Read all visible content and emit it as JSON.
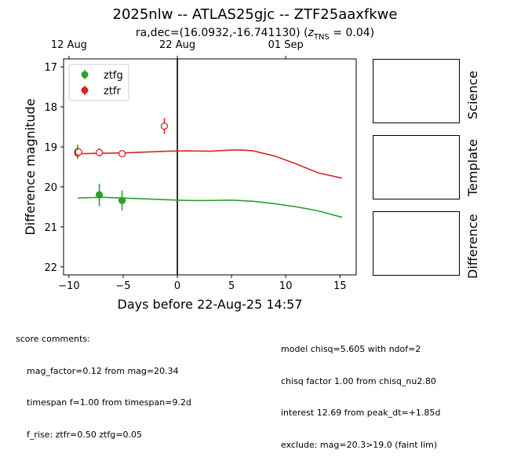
{
  "title": "2025nlw -- ATLAS25gjc -- ZTF25aaxfkwe",
  "subtitle_main": "ra,dec=(16.0932,-16.741130) (",
  "subtitle_z": "z",
  "subtitle_tns": "TNS",
  "subtitle_tail": " = 0.04)",
  "panels": {
    "science": "Science",
    "template": "Template",
    "difference": "Difference"
  },
  "comments_left": {
    "heading": "score comments:",
    "lines": [
      "mag_factor=0.12 from mag=20.34",
      "timespan f=1.00 from timespan=9.2d",
      "f_rise: ztfr=0.50 ztfg=0.05"
    ]
  },
  "comments_right": {
    "lines": [
      "model chisq=5.605 with ndof=2",
      "chisq factor 1.00 from chisq_nu2.80",
      "interest 12.69 from peak_dt=+1.85d",
      "exclude: mag=20.3>19.0 (faint lim)"
    ]
  },
  "chart_data": {
    "type": "scatter",
    "xlabel": "Days before 22-Aug-25 14:57",
    "ylabel": "Difference magnitude",
    "xlim": [
      -10.5,
      16.5
    ],
    "ylim": [
      22.2,
      16.8
    ],
    "y_inverted": true,
    "x_ticks": [
      -10,
      -5,
      0,
      5,
      10,
      15
    ],
    "y_ticks": [
      17,
      18,
      19,
      20,
      21,
      22
    ],
    "top_axis_ticks": [
      {
        "label": "12 Aug",
        "x": -10
      },
      {
        "label": "22 Aug",
        "x": 0
      },
      {
        "label": "01 Sep",
        "x": 10
      }
    ],
    "vline_x": 0,
    "legend": {
      "placement": "top-left"
    },
    "series": [
      {
        "name": "ztfg",
        "color": "#2ca02c",
        "points": [
          {
            "x": -9.2,
            "y": 19.12,
            "err": 0.18,
            "filled": true
          },
          {
            "x": -7.2,
            "y": 20.2,
            "err": 0.28,
            "filled": true
          },
          {
            "x": -5.1,
            "y": 20.34,
            "err": 0.25,
            "filled": true
          }
        ],
        "model": {
          "x": [
            -9.2,
            -7,
            -5,
            -3,
            -1,
            1,
            3,
            5,
            7,
            9,
            11,
            13,
            15.2
          ],
          "y": [
            20.28,
            20.26,
            20.28,
            20.3,
            20.32,
            20.34,
            20.34,
            20.33,
            20.36,
            20.42,
            20.5,
            20.6,
            20.76
          ]
        }
      },
      {
        "name": "ztfr",
        "color": "#d62728",
        "points": [
          {
            "x": -9.2,
            "y": 19.15,
            "err": 0.1,
            "filled": true
          },
          {
            "x": -9.1,
            "y": 19.13,
            "err": 0.1,
            "filled": false
          },
          {
            "x": -7.2,
            "y": 19.14,
            "err": 0.1,
            "filled": false
          },
          {
            "x": -5.1,
            "y": 19.17,
            "err": 0.08,
            "filled": false
          },
          {
            "x": -1.2,
            "y": 18.48,
            "err": 0.2,
            "filled": false
          }
        ],
        "model": {
          "x": [
            -9.2,
            -7,
            -5,
            -3,
            -1,
            1,
            3,
            5,
            6,
            7,
            9,
            11,
            13,
            15.2
          ],
          "y": [
            19.17,
            19.16,
            19.15,
            19.13,
            19.11,
            19.1,
            19.11,
            19.08,
            19.08,
            19.1,
            19.23,
            19.43,
            19.65,
            19.78
          ]
        }
      }
    ]
  }
}
